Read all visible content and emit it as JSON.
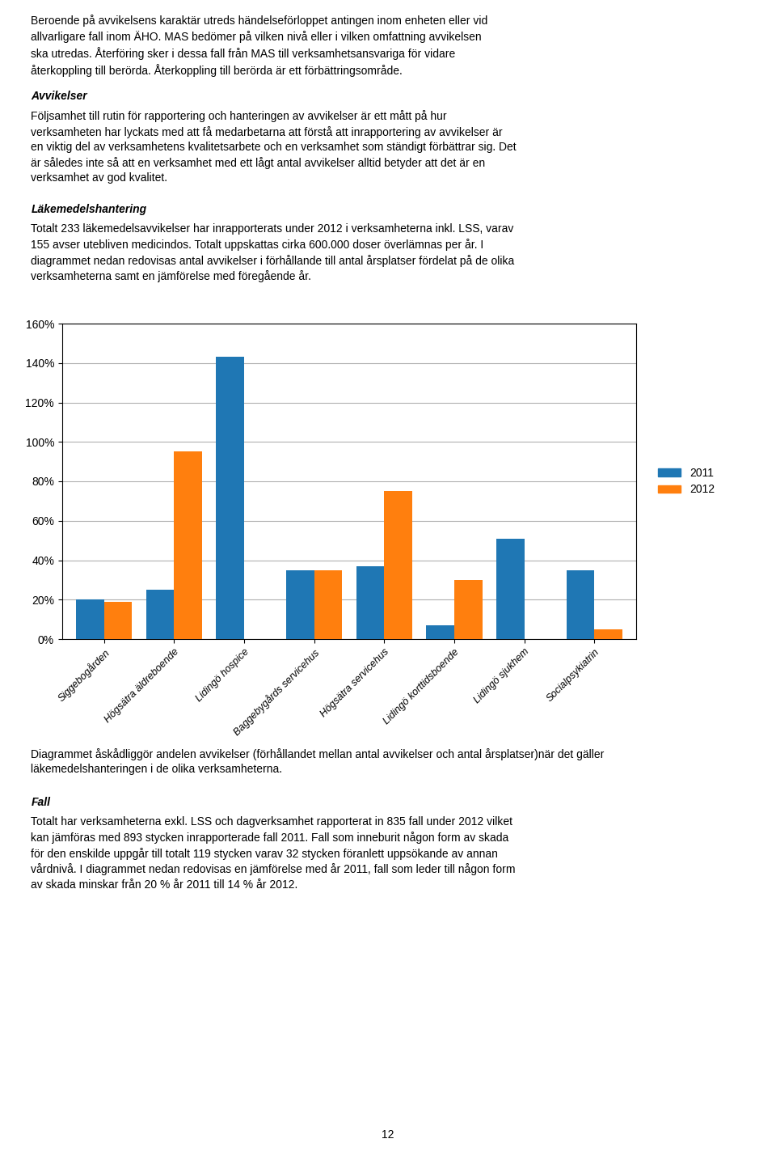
{
  "chart_data": {
    "type": "bar",
    "categories": [
      "Siggebogården",
      "Högsätra äldreboende",
      "Lidingö hospice",
      "Baggebygårds servicehus",
      "Högsätra servicehus",
      "Lidingö korttidsboende",
      "Lidingö sjukhem",
      "Socialpsykiatrin"
    ],
    "series": [
      {
        "name": "2011",
        "values": [
          20,
          25,
          143,
          35,
          37,
          7,
          51,
          35
        ]
      },
      {
        "name": "2012",
        "values": [
          19,
          95,
          0,
          35,
          75,
          30,
          0,
          5
        ]
      }
    ],
    "ylim": [
      0,
      160
    ],
    "yticks": [
      {
        "value": 0,
        "label": "0%"
      },
      {
        "value": 20,
        "label": "20%"
      },
      {
        "value": 40,
        "label": "40%"
      },
      {
        "value": 60,
        "label": "60%"
      },
      {
        "value": 80,
        "label": "80%"
      },
      {
        "value": 100,
        "label": "100%"
      },
      {
        "value": 120,
        "label": "120%"
      },
      {
        "value": 140,
        "label": "140%"
      },
      {
        "value": 160,
        "label": "160%"
      }
    ],
    "grid": true,
    "legend": "right",
    "annotations": [
      "Beroende på avvikelsens karaktär utreds händelseförloppet antingen inom enheten eller vid\nallvarligare fall inom ÄHO. MAS bedömer på vilken nivå eller i vilken omfattning avvikelsen\nska utredas. Återföring sker i dessa fall från MAS till verksamhetsansvariga för vidare\nåterkoppling till berörda. Återkoppling till berörda är ett förbättringsområde.",
      "Avvikelser",
      "Följsamhet till rutin för rapportering och hanteringen av avvikelser är ett mått på hur\nverksamheten har lyckats med att få medarbetarna att förstå att inrapportering av avvikelser är\nen viktig del av verksamhetens kvalitetsarbete och en verksamhet som ständigt förbättrar sig. Det\när således inte så att en verksamhet med ett lågt antal avvikelser alltid betyder att det är en\nverksamhet av god kvalitet.",
      "Läkemedelshantering",
      "Totalt 233 läkemedelsavvikelser har inrapporterats under 2012 i verksamheterna inkl. LSS, varav\n155 avser utebliven medicindos. Totalt uppskattas cirka 600.000 doser överlämnas per år. I\ndiagrammet nedan redovisas antal avvikelser i förhållande till antal årsplatser fördelat på de olika\nverksamheterna samt en jämförelse med föregående år.",
      "Diagrammet åskådliggör andelen avvikelser (förhållandet mellan antal avvikelser och antal årsplatser)när det gäller\nläkemedelshanteringen i de olika verksamheterna.",
      "Fall",
      "Totalt har verksamheterna exkl. LSS och dagverksamhet rapporterat in 835 fall under 2012 vilket\nkan jämföras med 893 stycken inrapporterade fall 2011. Fall som inneburit någon form av skada\nför den enskilde uppgår till totalt 119 stycken varav 32 stycken föranlett uppsökande av annan\nvårdnivå. I diagrammet nedan redovisas en jämförelse med år 2011, fall som leder till någon form\nav skada minskar från 20 % år 2011 till 14 % år 2012.",
      "12"
    ]
  }
}
